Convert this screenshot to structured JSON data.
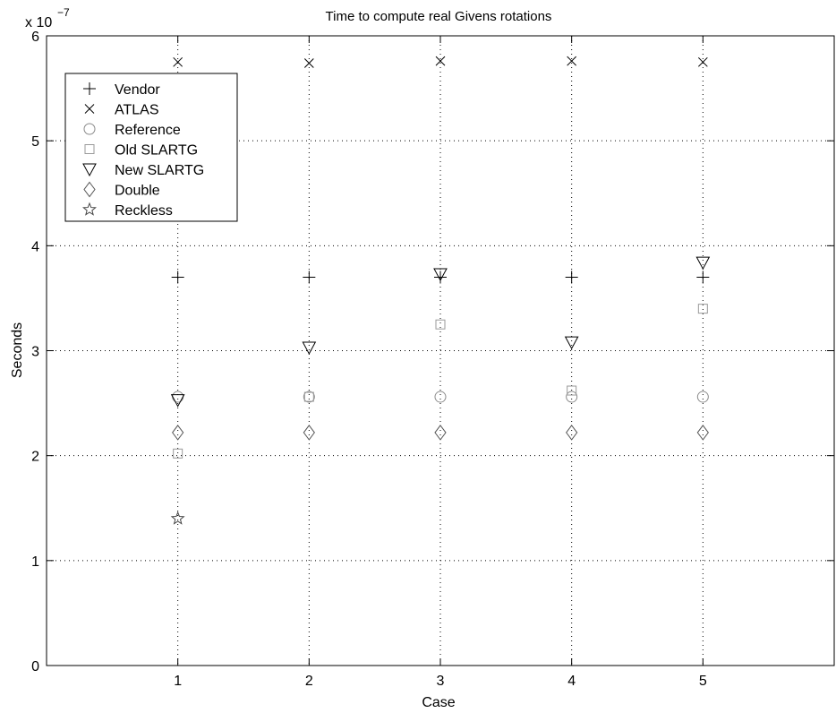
{
  "chart_data": {
    "type": "scatter",
    "title": "Time to compute real Givens rotations",
    "xlabel": "Case",
    "ylabel": "Seconds",
    "y_exponent_label": {
      "base": "x 10",
      "exponent": "−7"
    },
    "xlim": [
      0,
      6
    ],
    "ylim": [
      0,
      6
    ],
    "x_ticks": [
      1,
      2,
      3,
      4,
      5
    ],
    "y_ticks": [
      0,
      1,
      2,
      3,
      4,
      5,
      6
    ],
    "grid": "dotted",
    "legend_position": "top-left",
    "series": [
      {
        "name": "Vendor",
        "marker": "plus",
        "color": "#000000",
        "x": [
          1,
          2,
          3,
          4,
          5
        ],
        "y": [
          3.7,
          3.7,
          3.7,
          3.7,
          3.7
        ]
      },
      {
        "name": "ATLAS",
        "marker": "x",
        "color": "#000000",
        "x": [
          1,
          2,
          3,
          4,
          5
        ],
        "y": [
          5.75,
          5.74,
          5.76,
          5.76,
          5.75
        ]
      },
      {
        "name": "Reference",
        "marker": "circle",
        "color": "#8a8a8a",
        "x": [
          1,
          2,
          3,
          4,
          5
        ],
        "y": [
          2.56,
          2.56,
          2.56,
          2.56,
          2.56
        ]
      },
      {
        "name": "Old SLARTG",
        "marker": "square",
        "color": "#9a9a9a",
        "x": [
          1,
          2,
          3,
          4,
          5
        ],
        "y": [
          2.02,
          2.56,
          3.25,
          2.62,
          3.4
        ]
      },
      {
        "name": "New SLARTG",
        "marker": "triangle-down",
        "color": "#000000",
        "x": [
          1,
          2,
          3,
          4,
          5
        ],
        "y": [
          2.53,
          3.03,
          3.73,
          3.08,
          3.84
        ]
      },
      {
        "name": "Double",
        "marker": "diamond",
        "color": "#555555",
        "x": [
          1,
          2,
          3,
          4,
          5
        ],
        "y": [
          2.22,
          2.22,
          2.22,
          2.22,
          2.22
        ]
      },
      {
        "name": "Reckless",
        "marker": "pentagram",
        "color": "#444444",
        "x": [
          1
        ],
        "y": [
          1.4
        ]
      }
    ]
  }
}
